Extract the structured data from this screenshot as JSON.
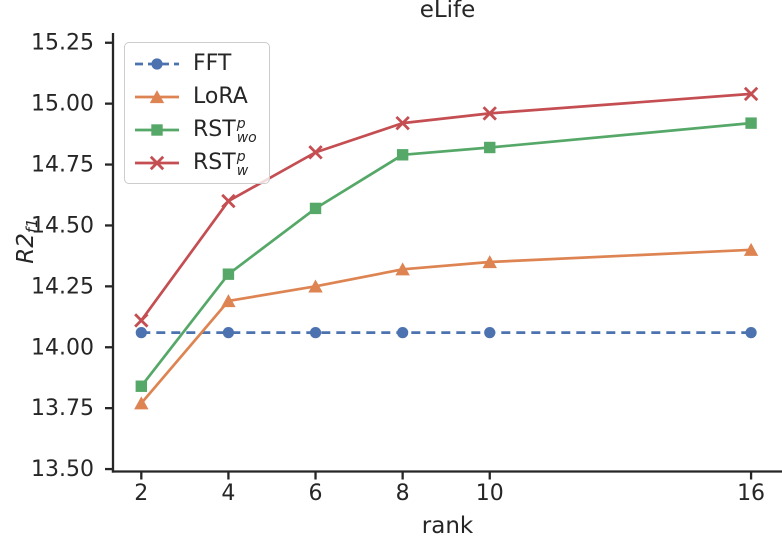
{
  "title": "eLife",
  "axes": {
    "xlabel": "rank",
    "ylabel_main": "R2",
    "ylabel_sub": "f1",
    "x_ticks": [
      "2",
      "4",
      "6",
      "8",
      "10",
      "16"
    ],
    "x_tick_values": [
      2,
      4,
      6,
      8,
      10,
      16
    ],
    "y_ticks": [
      "15.25",
      "15.00",
      "14.75",
      "14.50",
      "14.25",
      "14.00",
      "13.75",
      "13.50"
    ],
    "y_tick_values": [
      15.25,
      15.0,
      14.75,
      14.5,
      14.25,
      14.0,
      13.75,
      13.5
    ],
    "xlim": [
      1.35,
      16.71
    ],
    "ylim": [
      13.49,
      15.29
    ]
  },
  "chart_data": {
    "type": "line",
    "title": "eLife",
    "xlabel": "rank",
    "ylabel": "R2_f1",
    "x": [
      2,
      4,
      6,
      8,
      10,
      16
    ],
    "series": [
      {
        "name": "FFT",
        "color": "#4C72B0",
        "marker": "circle",
        "linestyle": "dashed",
        "values": [
          14.06,
          14.06,
          14.06,
          14.06,
          14.06,
          14.06
        ]
      },
      {
        "name": "LoRA",
        "color": "#DD8452",
        "marker": "triangle",
        "linestyle": "solid",
        "values": [
          13.77,
          14.19,
          14.25,
          14.32,
          14.35,
          14.4
        ]
      },
      {
        "name": "RST^p_wo",
        "color": "#55A868",
        "marker": "square",
        "linestyle": "solid",
        "values": [
          13.84,
          14.3,
          14.57,
          14.79,
          14.82,
          14.92
        ]
      },
      {
        "name": "RST^p_w",
        "color": "#C44E52",
        "marker": "x",
        "linestyle": "solid",
        "values": [
          14.11,
          14.6,
          14.8,
          14.92,
          14.96,
          15.04
        ]
      }
    ],
    "xlim": [
      1.35,
      16.71
    ],
    "ylim": [
      13.49,
      15.29
    ],
    "grid": false,
    "legend_position": "upper left"
  },
  "legend": {
    "items": [
      {
        "label": "FFT",
        "sup": "",
        "sub": ""
      },
      {
        "label": "LoRA",
        "sup": "",
        "sub": ""
      },
      {
        "label": "RST",
        "sup": "p",
        "sub": "wo"
      },
      {
        "label": "RST",
        "sup": "p",
        "sub": "w"
      }
    ]
  },
  "colors": {
    "text": "#262626",
    "spine": "#262626",
    "legend_border": "#cccccc",
    "background": "#ffffff"
  }
}
